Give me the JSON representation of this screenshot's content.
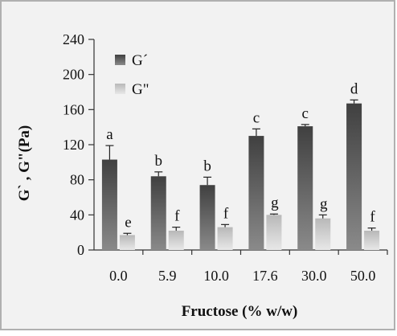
{
  "chart_data": {
    "type": "bar",
    "categories": [
      "0.0",
      "5.9",
      "10.0",
      "17.6",
      "30.0",
      "50.0"
    ],
    "series": [
      {
        "name": "G´",
        "values": [
          103,
          84,
          74,
          130,
          141,
          167
        ],
        "errors": [
          16,
          5,
          9,
          8,
          2,
          4
        ],
        "letters": [
          "a",
          "b",
          "b",
          "c",
          "c",
          "d"
        ],
        "color_dark": "#404040",
        "color_light": "#8a8a8a"
      },
      {
        "name": "G\"",
        "values": [
          17,
          22,
          26,
          40,
          36,
          22
        ],
        "errors": [
          2,
          4,
          3,
          1,
          4,
          3
        ],
        "letters": [
          "e",
          "f",
          "f",
          "g",
          "g",
          "f"
        ],
        "color_dark": "#b8b8b8",
        "color_light": "#e8e8e8"
      }
    ],
    "xlabel": "Fructose (% w/w)",
    "ylabel": "G` , G\"(Pa)",
    "ylim": [
      0,
      240
    ],
    "yticks": [
      "0",
      "40",
      "80",
      "120",
      "160",
      "200",
      "240"
    ],
    "grid": false,
    "legend_position": "top-left",
    "background_color": "#f2f2f2",
    "border_color": "#b0b0b0"
  }
}
